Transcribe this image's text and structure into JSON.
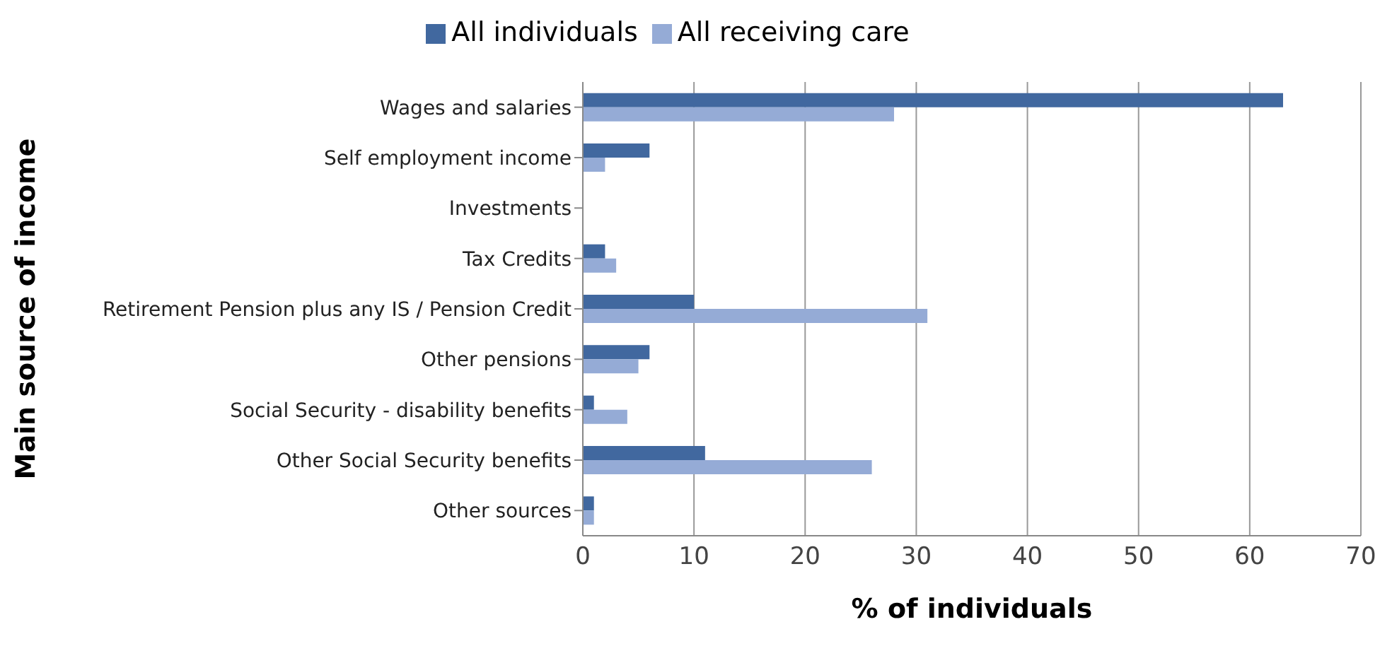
{
  "chart_data": {
    "type": "bar",
    "orientation": "horizontal",
    "xlabel": "% of  individuals",
    "ylabel": "Main source of income",
    "categories": [
      "Wages and salaries",
      "Self employment income",
      "Investments",
      "Tax Credits",
      "Retirement Pension plus any IS / Pension Credit",
      "Other pensions",
      "Social Security - disability benefits",
      "Other Social Security benefits",
      "Other sources"
    ],
    "series": [
      {
        "name": "All individuals",
        "color": "#41689f",
        "values": [
          63,
          6,
          0,
          2,
          10,
          6,
          1,
          11,
          1
        ]
      },
      {
        "name": "All receiving care",
        "color": "#95abd6",
        "values": [
          28,
          2,
          0,
          3,
          31,
          5,
          4,
          26,
          1
        ]
      }
    ],
    "xlim": [
      0,
      70
    ],
    "xticks": [
      0,
      10,
      20,
      30,
      40,
      50,
      60,
      70
    ],
    "grid": "x",
    "legend": "top"
  }
}
